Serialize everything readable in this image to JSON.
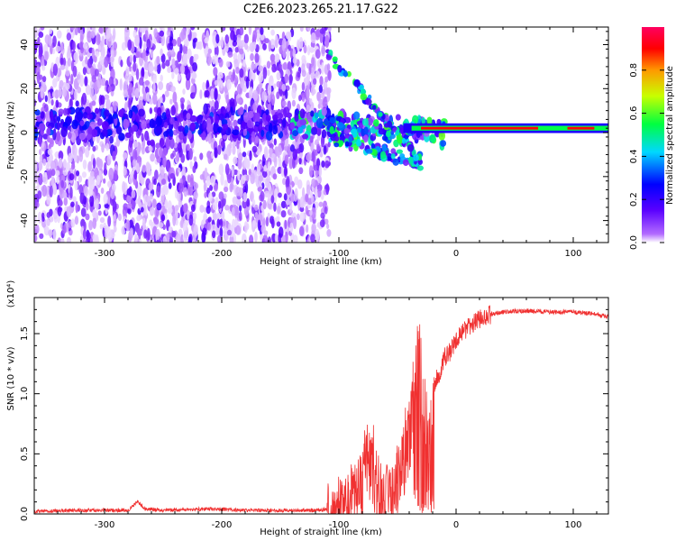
{
  "title": "C2E6.2023.265.21.17.G22",
  "chart_data": [
    {
      "type": "heatmap",
      "xlabel": "Height of straight line (km)",
      "ylabel": "Frequency (Hz)",
      "xlim": [
        -360,
        130
      ],
      "ylim": [
        -50,
        48
      ],
      "x_ticks": [
        -300,
        -200,
        -100,
        0,
        100
      ],
      "y_ticks": [
        -40,
        -20,
        0,
        20,
        40
      ],
      "colorbar": {
        "label": "Normalized spectral amplitude",
        "range": [
          0,
          1
        ],
        "ticks": [
          "0.0",
          "0.2",
          "0.4",
          "0.6",
          "0.8"
        ],
        "colors": [
          "#ffffff",
          "#b26bff",
          "#5a00ff",
          "#0000ff",
          "#00d8ff",
          "#00ff40",
          "#c8ff00",
          "#ff9900",
          "#ff0000",
          "#ff0060"
        ]
      },
      "features": {
        "noise_region_x": [
          -360,
          -108
        ],
        "central_band_frequency_hz": 2,
        "strong_band_x": [
          -30,
          130
        ],
        "strong_band_amplitude": 0.9
      }
    },
    {
      "type": "line",
      "xlabel": "Height of straight line (km)",
      "ylabel": "SNR (10 * v/v)",
      "y_scale_label": "(x10⁴)",
      "xlim": [
        -360,
        130
      ],
      "ylim": [
        0,
        1.8
      ],
      "x_ticks": [
        -300,
        -200,
        -100,
        0,
        100
      ],
      "y_ticks": [
        "0.0",
        "0.5",
        "1.0",
        "1.5"
      ],
      "series": [
        {
          "color": "#f03030",
          "x": [
            -360,
            -330,
            -300,
            -280,
            -272,
            -265,
            -250,
            -220,
            -200,
            -180,
            -150,
            -120,
            -110,
            -100,
            -90,
            -80,
            -75,
            -70,
            -65,
            -60,
            -55,
            -50,
            -45,
            -40,
            -35,
            -32,
            -30,
            -28,
            -25,
            -22,
            -20,
            -18,
            -15,
            -10,
            -5,
            0,
            10,
            20,
            30,
            40,
            60,
            80,
            100,
            120,
            130
          ],
          "y": [
            0.02,
            0.03,
            0.03,
            0.03,
            0.1,
            0.04,
            0.03,
            0.04,
            0.04,
            0.03,
            0.03,
            0.03,
            0.04,
            0.08,
            0.15,
            0.25,
            0.45,
            0.3,
            0.2,
            0.15,
            0.2,
            0.3,
            0.45,
            0.7,
            1.0,
            1.2,
            1.1,
            0.9,
            0.8,
            0.7,
            1.0,
            1.1,
            1.15,
            1.3,
            1.35,
            1.45,
            1.55,
            1.62,
            1.66,
            1.68,
            1.69,
            1.68,
            1.68,
            1.66,
            1.64
          ]
        }
      ]
    }
  ]
}
